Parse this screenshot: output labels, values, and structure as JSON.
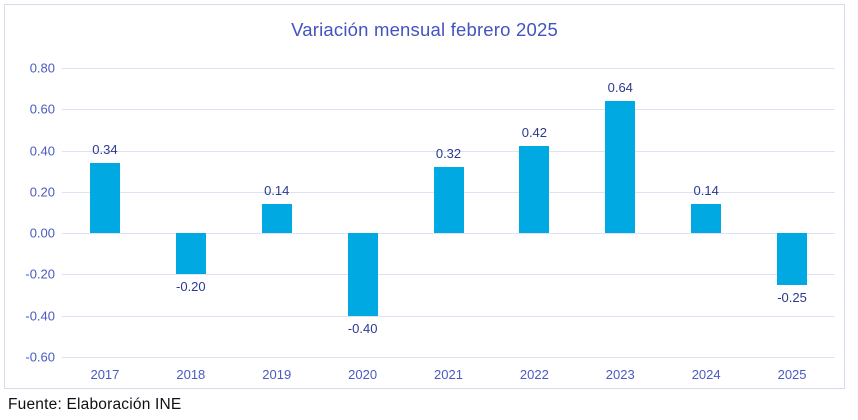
{
  "title": "Variación mensual febrero 2025",
  "footer": "Fuente: Elaboración INE",
  "colors": {
    "bar": "#00a9e1",
    "title_text": "#4453c1",
    "axis_label_text": "#4a5ac4",
    "data_label_text": "#2b3a8f",
    "gridline": "#dfe2f3",
    "frame_border": "#d8dbec",
    "footer_text": "#111111",
    "background": "#ffffff"
  },
  "chart_data": {
    "type": "bar",
    "title": "Variación mensual febrero 2025",
    "categories": [
      "2017",
      "2018",
      "2019",
      "2020",
      "2021",
      "2022",
      "2023",
      "2024",
      "2025"
    ],
    "values": [
      0.34,
      -0.2,
      0.14,
      -0.4,
      0.32,
      0.42,
      0.64,
      0.14,
      -0.25
    ],
    "data_labels": [
      "0.34",
      "-0.20",
      "0.14",
      "-0.40",
      "0.32",
      "0.42",
      "0.64",
      "0.14",
      "-0.25"
    ],
    "xlabel": "",
    "ylabel": "",
    "ylim": [
      -0.6,
      0.8
    ],
    "ytick_step": 0.2,
    "ytick_labels": [
      "0.80",
      "0.60",
      "0.40",
      "0.20",
      "0.00",
      "-0.20",
      "-0.40",
      "-0.60"
    ],
    "ytick_values": [
      0.8,
      0.6,
      0.4,
      0.2,
      0.0,
      -0.2,
      -0.4,
      -0.6
    ],
    "grid": true,
    "legend": false,
    "data_labels_shown": true,
    "source_note": "Fuente: Elaboración INE"
  }
}
